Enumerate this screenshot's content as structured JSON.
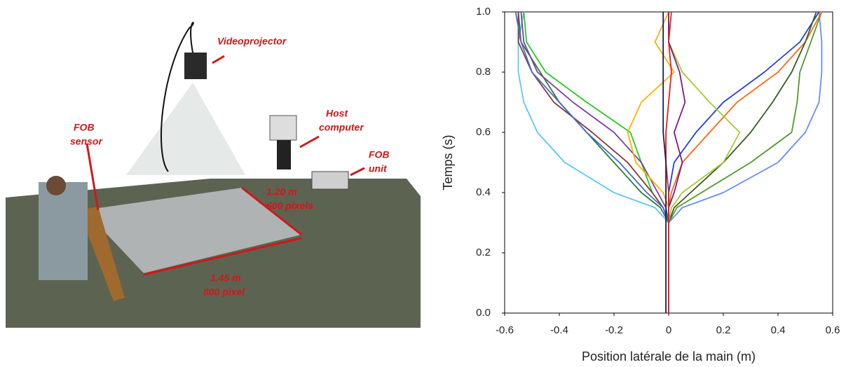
{
  "illustration": {
    "videoprojector": "Videoprojector",
    "host_computer": [
      "Host",
      "computer"
    ],
    "fob_unit": [
      "FOB",
      "unit"
    ],
    "fob_sensor": [
      "FOB",
      "sensor"
    ],
    "width_label": [
      "1.20 m",
      "600 pixels"
    ],
    "length_label": [
      "1.45 m",
      "800 pixel"
    ]
  },
  "chart_data": {
    "type": "line",
    "xlabel": "Position latérale de la main (m)",
    "ylabel": "Temps (s)",
    "xlim": [
      -0.6,
      0.6
    ],
    "ylim": [
      0,
      1
    ],
    "xticks": [
      -0.6,
      -0.4,
      -0.2,
      0,
      0.2,
      0.4,
      0.6
    ],
    "yticks": [
      {
        "value": 0,
        "label": "0.0"
      },
      0.2,
      0.4,
      0.6,
      0.8,
      {
        "value": 1,
        "label": "1.0"
      }
    ],
    "series": [
      {
        "color": "#5bc8f0",
        "x": [
          0,
          0,
          -0.05,
          -0.2,
          -0.38,
          -0.48,
          -0.53,
          -0.55,
          -0.55,
          -0.53
        ],
        "values": [
          0,
          0.3,
          0.35,
          0.4,
          0.5,
          0.6,
          0.7,
          0.8,
          0.9,
          1
        ]
      },
      {
        "color": "#22cc22",
        "x": [
          0,
          0,
          -0.02,
          -0.06,
          -0.1,
          -0.14,
          -0.3,
          -0.45,
          -0.52,
          -0.53
        ],
        "values": [
          0,
          0.3,
          0.35,
          0.4,
          0.5,
          0.6,
          0.7,
          0.8,
          0.9,
          1
        ]
      },
      {
        "color": "#2e7d32",
        "x": [
          0,
          0,
          -0.03,
          -0.1,
          -0.2,
          -0.3,
          -0.4,
          -0.47,
          -0.54,
          -0.55
        ],
        "values": [
          0,
          0.3,
          0.35,
          0.4,
          0.5,
          0.6,
          0.7,
          0.8,
          0.9,
          1
        ]
      },
      {
        "color": "#8b3a2a",
        "x": [
          0,
          0,
          -0.02,
          -0.06,
          -0.15,
          -0.28,
          -0.42,
          -0.5,
          -0.55,
          -0.55
        ],
        "values": [
          0,
          0.3,
          0.35,
          0.4,
          0.5,
          0.6,
          0.7,
          0.8,
          0.9,
          1
        ]
      },
      {
        "color": "#7b3fa0",
        "x": [
          0,
          0,
          -0.01,
          -0.04,
          -0.1,
          -0.2,
          -0.35,
          -0.48,
          -0.53,
          -0.54
        ],
        "values": [
          0,
          0.3,
          0.35,
          0.4,
          0.5,
          0.6,
          0.7,
          0.8,
          0.9,
          1
        ]
      },
      {
        "color": "#4169e1",
        "x": [
          0,
          0,
          -0.02,
          -0.08,
          -0.18,
          -0.3,
          -0.4,
          -0.5,
          -0.54,
          -0.56
        ],
        "values": [
          0,
          0.3,
          0.35,
          0.4,
          0.5,
          0.6,
          0.7,
          0.8,
          0.9,
          1
        ]
      },
      {
        "color": "#6a8cff",
        "x": [
          0,
          0,
          0.05,
          0.2,
          0.4,
          0.5,
          0.55,
          0.56,
          0.56,
          0.55
        ],
        "values": [
          0,
          0.3,
          0.35,
          0.4,
          0.5,
          0.6,
          0.7,
          0.8,
          0.9,
          1
        ]
      },
      {
        "color": "#4f9a2a",
        "x": [
          0,
          0,
          0.03,
          0.12,
          0.3,
          0.45,
          0.47,
          0.48,
          0.52,
          0.56
        ],
        "values": [
          0,
          0.3,
          0.35,
          0.4,
          0.5,
          0.6,
          0.7,
          0.8,
          0.9,
          1
        ]
      },
      {
        "color": "#1f3fd8",
        "x": [
          0,
          0,
          0,
          0,
          0.02,
          0.1,
          0.2,
          0.35,
          0.48,
          0.55
        ],
        "values": [
          0,
          0.3,
          0.35,
          0.4,
          0.5,
          0.6,
          0.7,
          0.8,
          0.9,
          1
        ]
      },
      {
        "color": "#ff6a10",
        "x": [
          0,
          0,
          0,
          0.01,
          0.05,
          0.15,
          0.25,
          0.4,
          0.5,
          0.56
        ],
        "values": [
          0,
          0.3,
          0.35,
          0.4,
          0.5,
          0.6,
          0.7,
          0.8,
          0.9,
          1
        ]
      },
      {
        "color": "#355e1e",
        "x": [
          0,
          0,
          0.02,
          0.08,
          0.2,
          0.3,
          0.38,
          0.45,
          0.5,
          0.54
        ],
        "values": [
          0,
          0.3,
          0.35,
          0.4,
          0.5,
          0.6,
          0.7,
          0.8,
          0.9,
          1
        ]
      },
      {
        "color": "#ffb000",
        "x": [
          0,
          0,
          0,
          -0.02,
          -0.12,
          -0.15,
          -0.1,
          0.02,
          -0.05,
          0
        ],
        "values": [
          0,
          0.3,
          0.35,
          0.4,
          0.5,
          0.6,
          0.7,
          0.8,
          0.9,
          1
        ]
      },
      {
        "color": "#a8c830",
        "x": [
          0,
          0,
          0.01,
          0.05,
          0.2,
          0.26,
          0.15,
          0.05,
          0,
          0
        ],
        "values": [
          0,
          0.3,
          0.35,
          0.4,
          0.5,
          0.6,
          0.7,
          0.8,
          0.9,
          1
        ]
      },
      {
        "color": "#7a1a8a",
        "x": [
          0,
          0,
          0,
          0.02,
          0.05,
          0.02,
          0.06,
          0.04,
          0,
          0
        ],
        "values": [
          0,
          0.3,
          0.35,
          0.4,
          0.5,
          0.6,
          0.7,
          0.8,
          0.9,
          1
        ]
      },
      {
        "color": "#e02020",
        "x": [
          0,
          0,
          0,
          0,
          -0.01,
          -0.01,
          0,
          0.01,
          0,
          0.01
        ],
        "values": [
          0,
          0.3,
          0.35,
          0.4,
          0.5,
          0.6,
          0.7,
          0.8,
          0.9,
          1
        ]
      },
      {
        "color": "#1a1a5a",
        "x": [
          -0.01,
          -0.01,
          -0.01,
          -0.01,
          -0.01,
          -0.02,
          -0.02,
          -0.02,
          -0.02,
          -0.02
        ],
        "values": [
          0,
          0.3,
          0.35,
          0.4,
          0.5,
          0.6,
          0.7,
          0.8,
          0.9,
          1
        ]
      }
    ]
  }
}
